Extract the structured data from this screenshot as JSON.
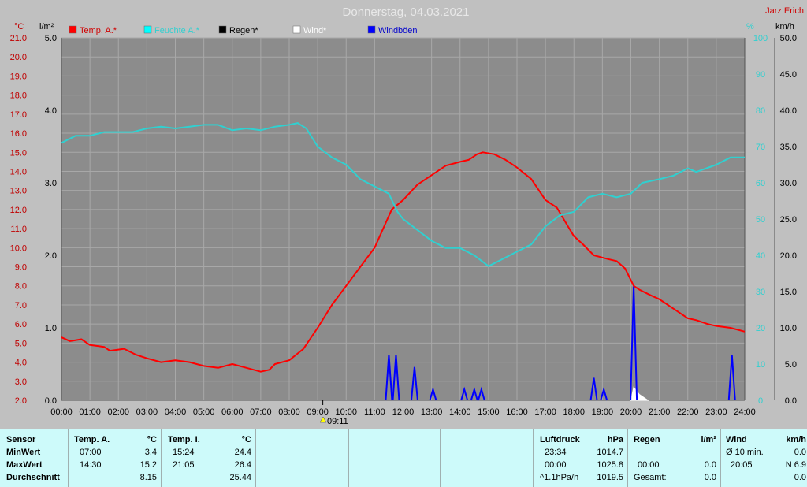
{
  "header": {
    "title": "Donnerstag, 04.03.2021",
    "author": "Jarz Erich",
    "unit_temp": "°C",
    "unit_rain": "l/m²",
    "unit_pct": "%",
    "unit_wind": "km/h",
    "legend": [
      {
        "label": "Temp. A.*",
        "color": "#ff0000"
      },
      {
        "label": "Feuchte A.*",
        "color": "#00ffff"
      },
      {
        "label": "Regen*",
        "color": "#000000"
      },
      {
        "label": "Wind*",
        "color": "#ffffff"
      },
      {
        "label": "Windböen",
        "color": "#0000ff"
      }
    ],
    "event_label": "09:11"
  },
  "colors": {
    "background": "#c0c0c0",
    "plot_background": "#8c8c8c",
    "grid": "#a8a8a8",
    "temp": "#ff0000",
    "humidity": "#30d0d0",
    "gusts": "#0000ff",
    "wind": "#ffffff",
    "temp_axis": "#c00000",
    "humidity_axis": "#30d0d0"
  },
  "chart_data": {
    "type": "line",
    "title": "Donnerstag, 04.03.2021",
    "x_ticks": [
      "00:00",
      "01:00",
      "02:00",
      "03:00",
      "04:00",
      "05:00",
      "06:00",
      "07:00",
      "08:00",
      "09:00",
      "10:00",
      "11:00",
      "12:00",
      "13:00",
      "14:00",
      "15:00",
      "16:00",
      "17:00",
      "18:00",
      "19:00",
      "20:00",
      "21:00",
      "22:00",
      "23:00",
      "24:00"
    ],
    "xlim": [
      0,
      24
    ],
    "temp_axis": {
      "label": "°C",
      "ticks": [
        "21.0",
        "20.0",
        "19.0",
        "18.0",
        "17.0",
        "16.0",
        "15.0",
        "14.0",
        "13.0",
        "12.0",
        "11.0",
        "10.0",
        "9.0",
        "8.0",
        "7.0",
        "6.0",
        "5.0",
        "4.0",
        "3.0",
        "2.0"
      ],
      "ylim": [
        2,
        21
      ]
    },
    "rain_axis": {
      "label": "l/m²",
      "ticks": [
        "5.0",
        "4.0",
        "3.0",
        "2.0",
        "1.0",
        "0.0"
      ],
      "ylim": [
        0,
        5
      ]
    },
    "humidity_axis": {
      "label": "%",
      "ticks": [
        "100",
        "90",
        "80",
        "70",
        "60",
        "50",
        "40",
        "30",
        "20",
        "10",
        "0"
      ],
      "ylim": [
        0,
        100
      ]
    },
    "wind_axis": {
      "label": "km/h",
      "ticks": [
        "50.0",
        "45.0",
        "40.0",
        "35.0",
        "30.0",
        "25.0",
        "20.0",
        "15.0",
        "10.0",
        "5.0",
        "0.0"
      ],
      "ylim": [
        0,
        50
      ]
    },
    "grid": true,
    "series": [
      {
        "name": "Temp. A.*",
        "axis": "temp",
        "points": [
          [
            0,
            5.3
          ],
          [
            0.3,
            5.1
          ],
          [
            0.7,
            5.2
          ],
          [
            1,
            4.9
          ],
          [
            1.5,
            4.8
          ],
          [
            1.7,
            4.6
          ],
          [
            2.2,
            4.7
          ],
          [
            2.6,
            4.4
          ],
          [
            3,
            4.2
          ],
          [
            3.5,
            4.0
          ],
          [
            4,
            4.1
          ],
          [
            4.5,
            4.0
          ],
          [
            5,
            3.8
          ],
          [
            5.5,
            3.7
          ],
          [
            6,
            3.9
          ],
          [
            6.5,
            3.7
          ],
          [
            7,
            3.5
          ],
          [
            7.3,
            3.6
          ],
          [
            7.5,
            3.9
          ],
          [
            8,
            4.1
          ],
          [
            8.5,
            4.7
          ],
          [
            9,
            5.8
          ],
          [
            9.5,
            7.0
          ],
          [
            10,
            8.0
          ],
          [
            10.5,
            9.0
          ],
          [
            11,
            10.0
          ],
          [
            11.3,
            11.0
          ],
          [
            11.6,
            12.0
          ],
          [
            12,
            12.5
          ],
          [
            12.5,
            13.3
          ],
          [
            13,
            13.8
          ],
          [
            13.5,
            14.3
          ],
          [
            14,
            14.5
          ],
          [
            14.3,
            14.6
          ],
          [
            14.6,
            14.9
          ],
          [
            14.8,
            15.0
          ],
          [
            15.2,
            14.9
          ],
          [
            15.6,
            14.6
          ],
          [
            16,
            14.2
          ],
          [
            16.5,
            13.6
          ],
          [
            17,
            12.5
          ],
          [
            17.4,
            12.1
          ],
          [
            17.8,
            11.1
          ],
          [
            18,
            10.6
          ],
          [
            18.3,
            10.2
          ],
          [
            18.7,
            9.6
          ],
          [
            19.2,
            9.4
          ],
          [
            19.5,
            9.3
          ],
          [
            19.8,
            8.9
          ],
          [
            20.1,
            8.0
          ],
          [
            20.3,
            7.8
          ],
          [
            20.7,
            7.5
          ],
          [
            21,
            7.3
          ],
          [
            21.5,
            6.8
          ],
          [
            22,
            6.3
          ],
          [
            22.3,
            6.2
          ],
          [
            22.7,
            6.0
          ],
          [
            23,
            5.9
          ],
          [
            23.5,
            5.8
          ],
          [
            24,
            5.6
          ]
        ]
      },
      {
        "name": "Feuchte A.*",
        "axis": "humidity",
        "points": [
          [
            0,
            71
          ],
          [
            0.5,
            73
          ],
          [
            1,
            73
          ],
          [
            1.5,
            74
          ],
          [
            2,
            74
          ],
          [
            2.5,
            74
          ],
          [
            3,
            75
          ],
          [
            3.5,
            75.5
          ],
          [
            4,
            75
          ],
          [
            4.5,
            75.5
          ],
          [
            5,
            76
          ],
          [
            5.5,
            76
          ],
          [
            6,
            74.5
          ],
          [
            6.5,
            75
          ],
          [
            7,
            74.5
          ],
          [
            7.5,
            75.5
          ],
          [
            8,
            76
          ],
          [
            8.3,
            76.5
          ],
          [
            8.6,
            75
          ],
          [
            9,
            70
          ],
          [
            9.5,
            67
          ],
          [
            10,
            65
          ],
          [
            10.5,
            61
          ],
          [
            11,
            59
          ],
          [
            11.5,
            57
          ],
          [
            11.8,
            52
          ],
          [
            12,
            50
          ],
          [
            12.5,
            47
          ],
          [
            13,
            44
          ],
          [
            13.5,
            42
          ],
          [
            14,
            42
          ],
          [
            14.5,
            40
          ],
          [
            15,
            37
          ],
          [
            15.5,
            39
          ],
          [
            16,
            41
          ],
          [
            16.5,
            43
          ],
          [
            17,
            48
          ],
          [
            17.5,
            51
          ],
          [
            18,
            52
          ],
          [
            18.5,
            56
          ],
          [
            19,
            57
          ],
          [
            19.5,
            56
          ],
          [
            20,
            57
          ],
          [
            20.4,
            60
          ],
          [
            21,
            61
          ],
          [
            21.5,
            62
          ],
          [
            22,
            64
          ],
          [
            22.3,
            63
          ],
          [
            23,
            65
          ],
          [
            23.5,
            67
          ],
          [
            24,
            67
          ]
        ]
      }
    ],
    "gusts": {
      "name": "Windböen",
      "axis": "wind",
      "points": [
        [
          11.5,
          6.3
        ],
        [
          11.75,
          6.3
        ],
        [
          12.4,
          4.6
        ],
        [
          13.05,
          1.5
        ],
        [
          14.15,
          1.5
        ],
        [
          14.5,
          1.5
        ],
        [
          14.75,
          1.5
        ],
        [
          18.7,
          3.1
        ],
        [
          19.05,
          1.5
        ],
        [
          20.1,
          15.7
        ],
        [
          23.55,
          6.3
        ]
      ]
    },
    "wind": {
      "name": "Wind*",
      "axis": "wind",
      "points": [
        [
          20.0,
          0
        ],
        [
          20.1,
          1.8
        ],
        [
          20.3,
          0.8
        ],
        [
          20.6,
          0
        ]
      ]
    }
  },
  "stats": {
    "temp_a": {
      "header": "Temp. A.",
      "unit": "°C",
      "min_time": "07:00",
      "min_val": "3.4",
      "max_time": "14:30",
      "max_val": "15.2",
      "avg_val": "8.15"
    },
    "temp_i": {
      "header": "Temp. I.",
      "unit": "°C",
      "min_time": "15:24",
      "min_val": "24.4",
      "max_time": "21:05",
      "max_val": "26.4",
      "avg_val": "25.44"
    },
    "row_labels": {
      "sensor": "Sensor",
      "min": "MinWert",
      "max": "MaxWert",
      "avg": "Durchschnitt"
    },
    "pressure": {
      "header": "Luftdruck",
      "unit": "hPa",
      "min_time": "23:34",
      "min_val": "1014.7",
      "max_time": "00:00",
      "max_val": "1025.8",
      "trend_label": "^1.1hPa/h",
      "trend_val": "1019.5"
    },
    "rain": {
      "header": "Regen",
      "unit": "l/m²",
      "max_time": "00:00",
      "max_val": "0.0",
      "total_label": "Gesamt:",
      "total_val": "0.0"
    },
    "wind": {
      "header": "Wind",
      "unit": "km/h",
      "avg_label": "Ø 10 min.",
      "avg_val": "0.0",
      "max_time": "20:05",
      "max_val": "N 6.9",
      "third_val": "0.0"
    }
  }
}
